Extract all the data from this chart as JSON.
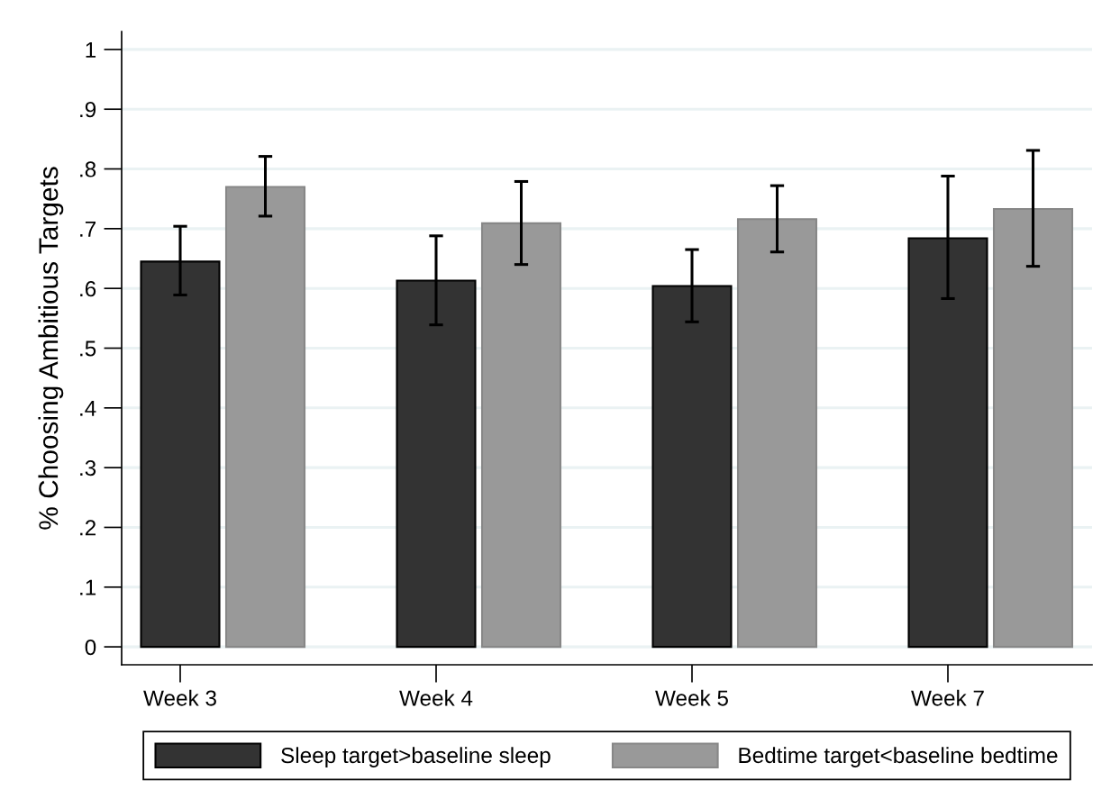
{
  "chart_data": {
    "type": "bar",
    "ylabel": "% Choosing Ambitious Targets",
    "categories": [
      "Week 3",
      "Week 4",
      "Week 5",
      "Week 7"
    ],
    "series": [
      {
        "name": "Sleep target>baseline sleep",
        "color": "#333333",
        "values": [
          0.645,
          0.613,
          0.604,
          0.684
        ],
        "errors": [
          [
            0.589,
            0.704
          ],
          [
            0.539,
            0.688
          ],
          [
            0.544,
            0.665
          ],
          [
            0.583,
            0.788
          ]
        ]
      },
      {
        "name": "Bedtime target<baseline bedtime",
        "color": "#999999",
        "values": [
          0.77,
          0.709,
          0.716,
          0.733
        ],
        "errors": [
          [
            0.721,
            0.821
          ],
          [
            0.64,
            0.779
          ],
          [
            0.661,
            0.772
          ],
          [
            0.637,
            0.831
          ]
        ]
      }
    ],
    "ylim": [
      -0.03,
      1.03
    ],
    "yticks": [
      0,
      {
        "value": 0.1,
        "label": ".1"
      },
      {
        "value": 0.2,
        "label": ".2"
      },
      {
        "value": 0.3,
        "label": ".3"
      },
      {
        "value": 0.4,
        "label": ".4"
      },
      {
        "value": 0.5,
        "label": ".5"
      },
      {
        "value": 0.6,
        "label": ".6"
      },
      {
        "value": 0.7,
        "label": ".7"
      },
      {
        "value": 0.8,
        "label": ".8"
      },
      {
        "value": 0.9,
        "label": ".9"
      },
      1
    ],
    "grid": "y",
    "legend": "bottom"
  }
}
